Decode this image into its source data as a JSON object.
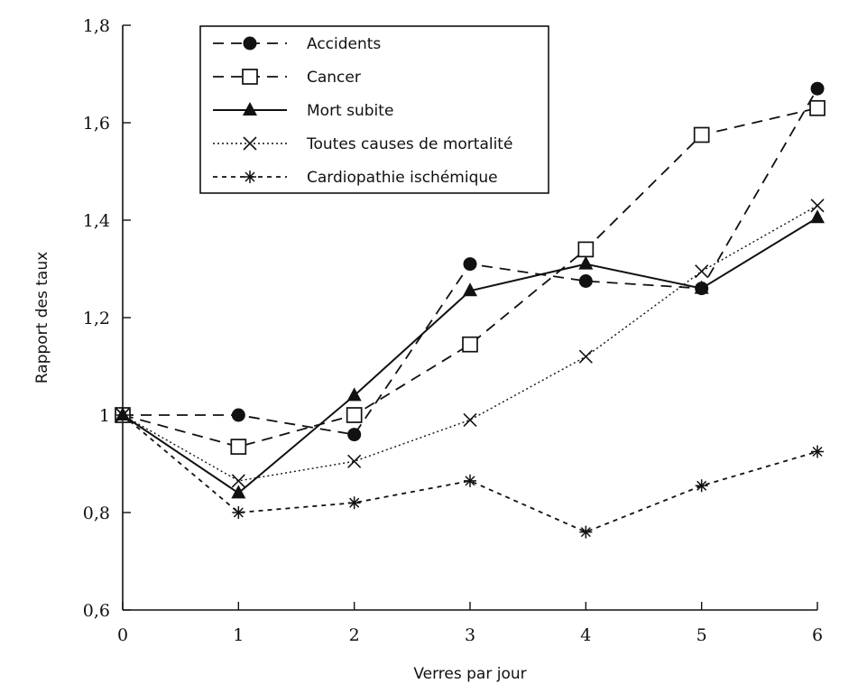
{
  "chart_data": {
    "type": "line",
    "title": "",
    "xlabel": "Verres par jour",
    "ylabel": "Rapport des taux",
    "x": [
      0,
      1,
      2,
      3,
      4,
      5,
      6
    ],
    "xlim": [
      0,
      6
    ],
    "ylim": [
      0.6,
      1.8
    ],
    "x_ticks": [
      "0",
      "1",
      "2",
      "3",
      "4",
      "5",
      "6"
    ],
    "y_ticks": [
      {
        "value": 0.6,
        "label": "0,6"
      },
      {
        "value": 0.8,
        "label": "0,8"
      },
      {
        "value": 1.0,
        "label": "1"
      },
      {
        "value": 1.2,
        "label": "1,2"
      },
      {
        "value": 1.4,
        "label": "1,4"
      },
      {
        "value": 1.6,
        "label": "1,6"
      },
      {
        "value": 1.8,
        "label": "1,8"
      }
    ],
    "grid": false,
    "legend_position": "top-left",
    "series": [
      {
        "name": "Accidents",
        "values": [
          1.0,
          1.0,
          0.96,
          1.31,
          1.275,
          1.26,
          1.67
        ],
        "line": "dashed",
        "marker": "filled-circle",
        "color": "#111111"
      },
      {
        "name": "Cancer",
        "values": [
          1.0,
          0.935,
          1.0,
          1.145,
          1.34,
          1.575,
          1.63
        ],
        "line": "dashed",
        "marker": "open-square",
        "color": "#111111"
      },
      {
        "name": "Mort subite",
        "values": [
          1.0,
          0.84,
          1.04,
          1.255,
          1.31,
          1.26,
          1.405
        ],
        "line": "solid",
        "marker": "filled-triangle",
        "color": "#111111"
      },
      {
        "name": "Toutes causes de mortalité",
        "values": [
          1.0,
          0.865,
          0.905,
          0.99,
          1.12,
          1.295,
          1.43
        ],
        "line": "dotted",
        "marker": "x",
        "color": "#111111"
      },
      {
        "name": "Cardiopathie ischémique",
        "values": [
          1.0,
          0.8,
          0.82,
          0.865,
          0.76,
          0.855,
          0.925
        ],
        "line": "short-dashed",
        "marker": "asterisk",
        "color": "#111111"
      }
    ]
  }
}
